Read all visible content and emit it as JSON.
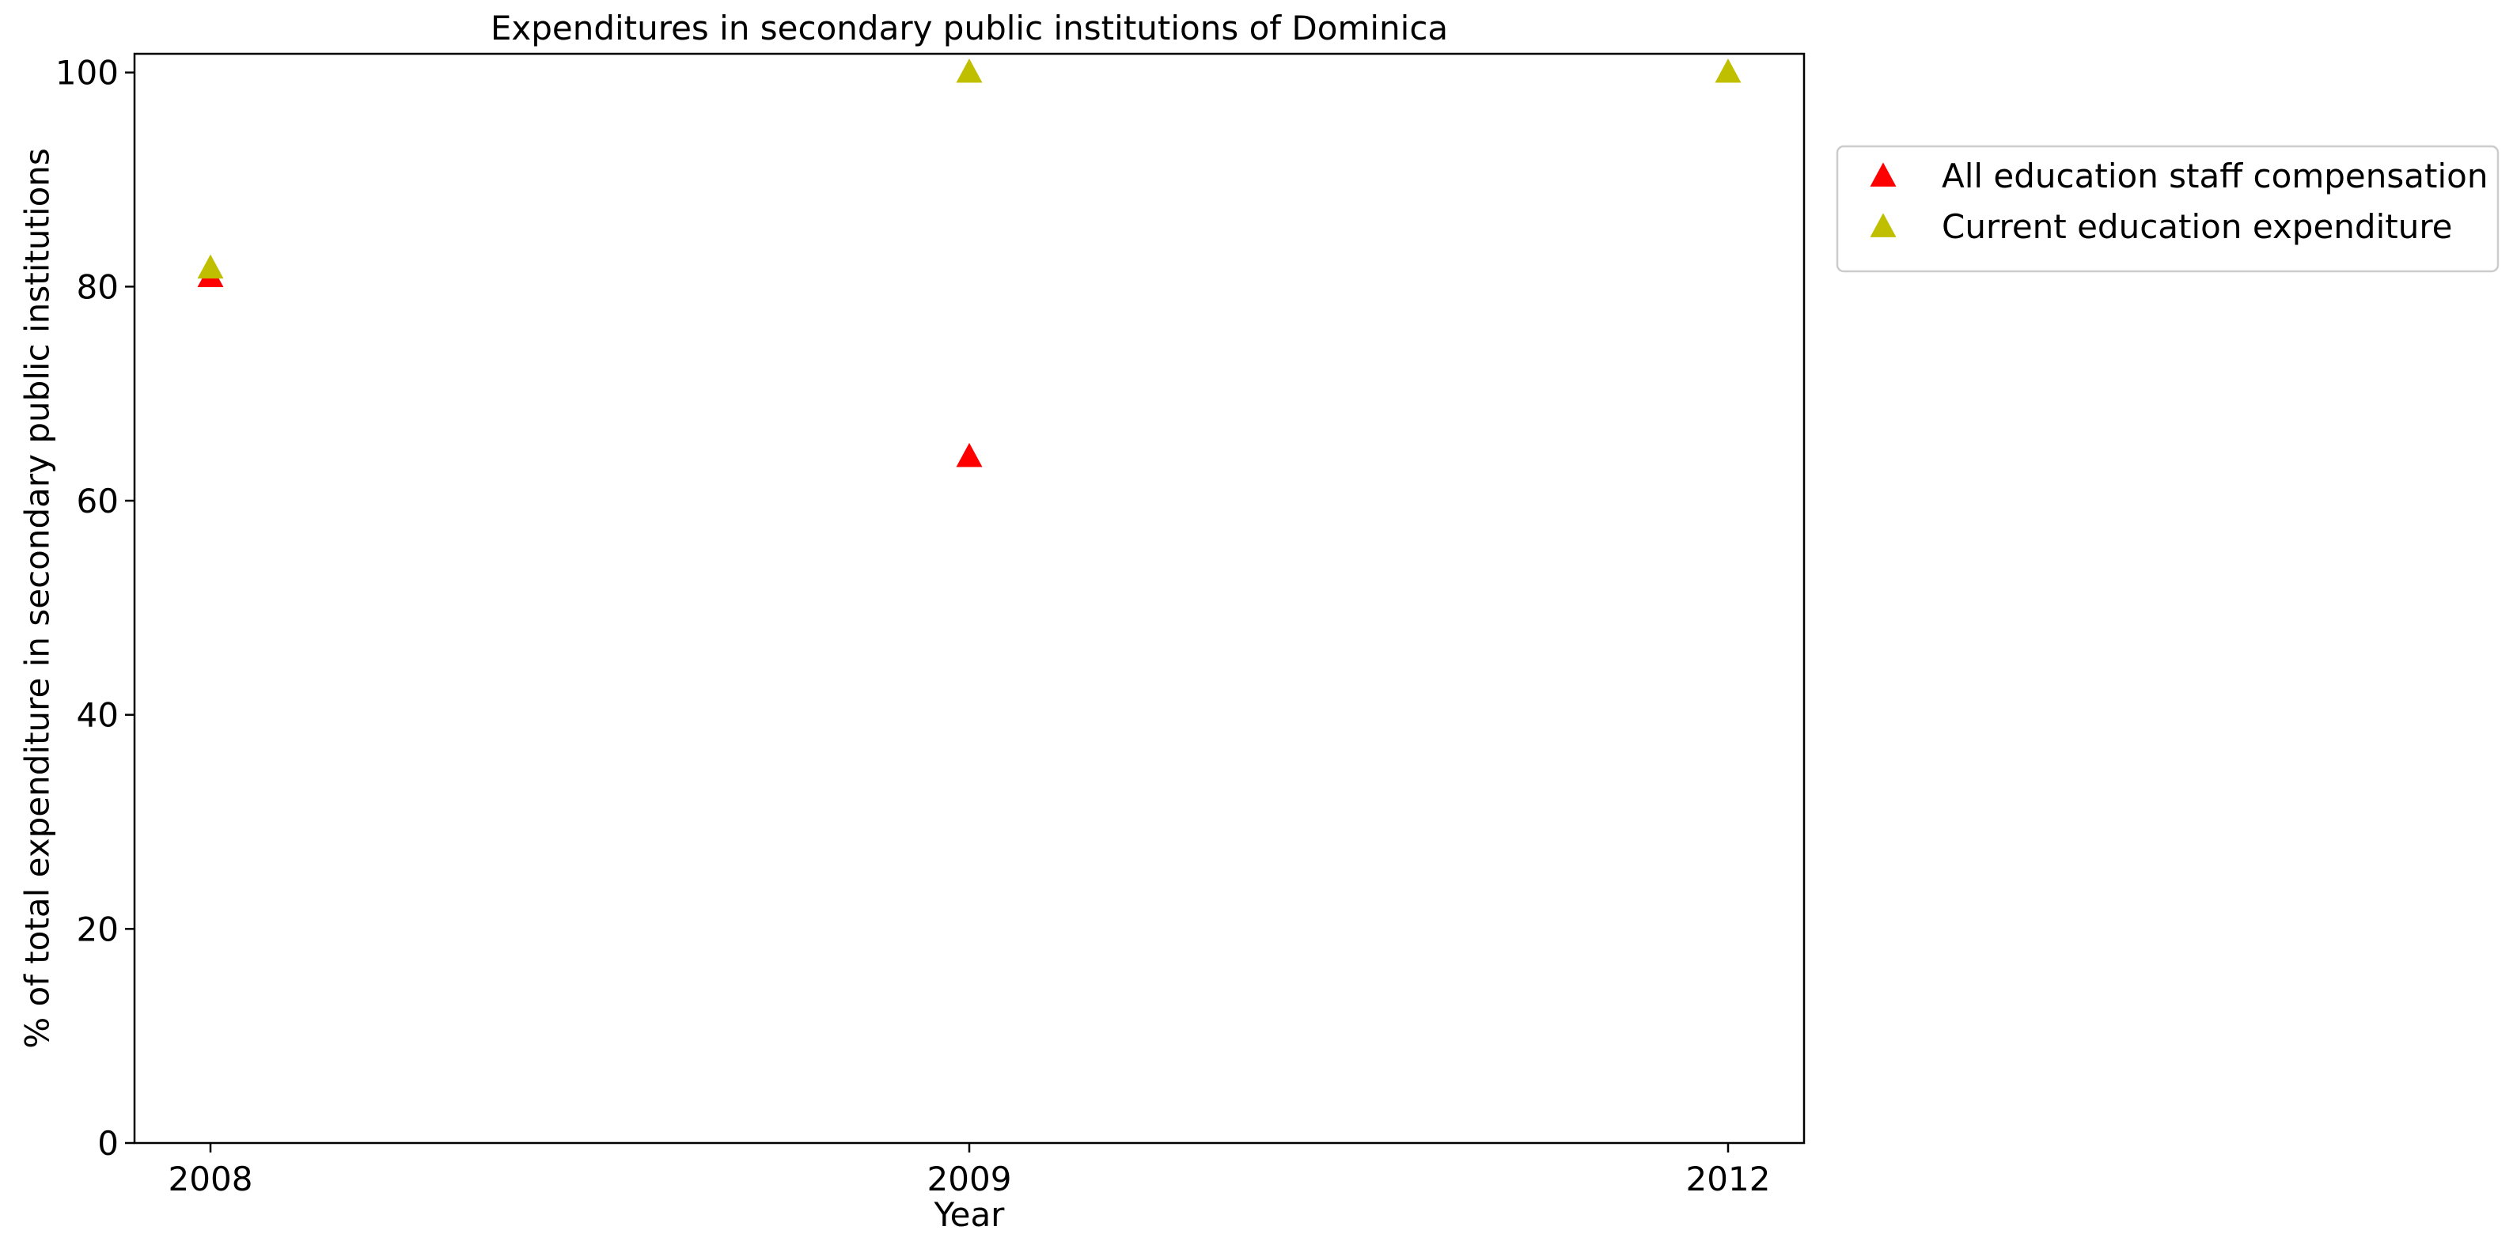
{
  "chart_data": {
    "type": "scatter",
    "title": "Expenditures in secondary public institutions of Dominica",
    "xlabel": "Year",
    "ylabel": "% of total expenditure in secondary public institutions",
    "categories": [
      "2008",
      "2009",
      "2012"
    ],
    "ylim": [
      0,
      100
    ],
    "yticks": [
      0,
      20,
      40,
      60,
      80,
      100
    ],
    "grid": false,
    "legend_position": "outside-right-top",
    "marker": "triangle-up",
    "series": [
      {
        "name": "All education staff compensation",
        "color": "#ff0000",
        "values": [
          80.9,
          64.1,
          null
        ]
      },
      {
        "name": "Current education expenditure",
        "color": "#bfbf00",
        "values": [
          81.7,
          100.0,
          100.0
        ]
      }
    ]
  }
}
